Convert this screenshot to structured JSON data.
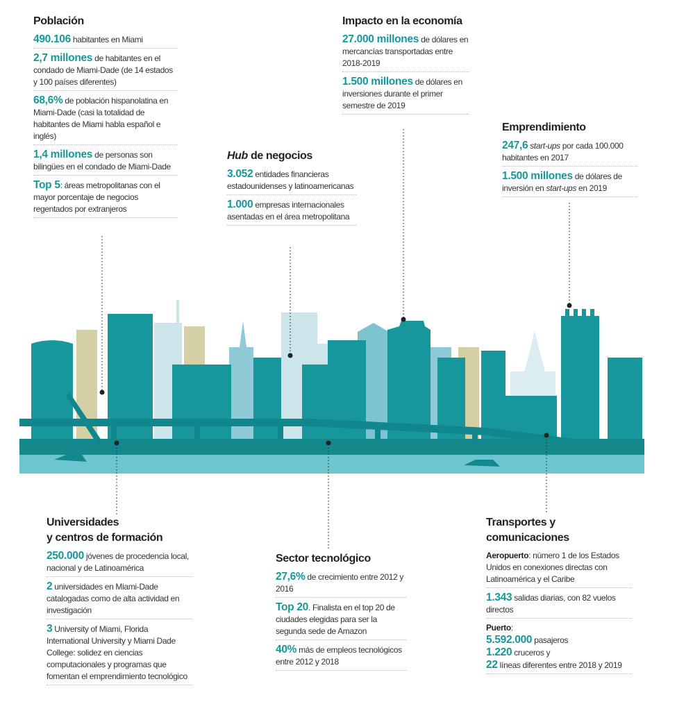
{
  "sections": [
    {
      "title": [
        [
          {
            "t": "Población"
          }
        ]
      ],
      "items": [
        [
          [
            {
              "t": "490.106",
              "s": "num"
            },
            {
              "t": " habitantes en Miami"
            }
          ]
        ],
        [
          [
            {
              "t": "2,7 millones",
              "s": "num"
            },
            {
              "t": " de habitantes en el condado de Miami-Dade (de 14 estados y 100 países diferentes)"
            }
          ]
        ],
        [
          [
            {
              "t": "68,6%",
              "s": "num"
            },
            {
              "t": " de población hispanolatina en Miami-Dade (casi la totalidad de habitantes de Miami habla español e inglés)"
            }
          ]
        ],
        [
          [
            {
              "t": "1,4 millones",
              "s": "num"
            },
            {
              "t": " de personas son bilingües en el condado de Miami-Dade"
            }
          ]
        ],
        [
          [
            {
              "t": "Top 5",
              "s": "num"
            },
            {
              "t": ": áreas metropolitanas con el mayor porcentaje de negocios regentados por extranjeros"
            }
          ]
        ]
      ]
    },
    {
      "title": [
        [
          {
            "t": "Hub",
            "s": "it"
          },
          {
            "t": " de negocios"
          }
        ]
      ],
      "items": [
        [
          [
            {
              "t": "3.052",
              "s": "num"
            },
            {
              "t": " entidades financieras estadounidenses y latinoamericanas"
            }
          ]
        ],
        [
          [
            {
              "t": "1.000",
              "s": "num"
            },
            {
              "t": " empresas internacionales asentadas en el área metropolitana"
            }
          ]
        ]
      ]
    },
    {
      "title": [
        [
          {
            "t": "Impacto en la economía"
          }
        ]
      ],
      "items": [
        [
          [
            {
              "t": "27.000 millones",
              "s": "num"
            },
            {
              "t": " de dólares en mercancías transportadas entre 2018-2019"
            }
          ]
        ],
        [
          [
            {
              "t": "1.500 millones",
              "s": "num"
            },
            {
              "t": " de dólares en inversiones durante el primer semestre de 2019"
            }
          ]
        ]
      ]
    },
    {
      "title": [
        [
          {
            "t": "Emprendimiento"
          }
        ]
      ],
      "items": [
        [
          [
            {
              "t": "247,6",
              "s": "num"
            },
            {
              "t": " "
            },
            {
              "t": "start-ups",
              "s": "it"
            },
            {
              "t": " por cada 100.000 habitantes en 2017"
            }
          ]
        ],
        [
          [
            {
              "t": "1.500 millones",
              "s": "num"
            },
            {
              "t": " de dólares de inversión en "
            },
            {
              "t": "start-ups",
              "s": "it"
            },
            {
              "t": " en 2019"
            }
          ]
        ]
      ]
    },
    {
      "title": [
        [
          {
            "t": "Universidades"
          }
        ],
        [
          {
            "t": "y centros de formación"
          }
        ]
      ],
      "items": [
        [
          [
            {
              "t": "250.000",
              "s": "num"
            },
            {
              "t": " jóvenes de procedencia local, nacional y de Latinoamérica"
            }
          ]
        ],
        [
          [
            {
              "t": "2",
              "s": "num"
            },
            {
              "t": " universidades en Miami-Dade catalogadas como de alta actividad en investigación"
            }
          ]
        ],
        [
          [
            {
              "t": "3",
              "s": "num"
            },
            {
              "t": " University of Miami, Florida International University y Miami Dade College: solidez en ciencias computacionales y programas que fomentan el emprendimiento tecnológico"
            }
          ]
        ]
      ]
    },
    {
      "title": [
        [
          {
            "t": "Sector tecnológico"
          }
        ]
      ],
      "items": [
        [
          [
            {
              "t": "27,6%",
              "s": "num"
            },
            {
              "t": " de crecimiento entre 2012 y 2016"
            }
          ]
        ],
        [
          [
            {
              "t": "Top 20",
              "s": "num"
            },
            {
              "t": ". Finalista en el top 20 de ciudades elegidas para ser la segunda sede de Amazon"
            }
          ]
        ],
        [
          [
            {
              "t": "40%",
              "s": "num"
            },
            {
              "t": " más de empleos tecnológicos entre 2012 y 2018"
            }
          ]
        ]
      ]
    },
    {
      "title": [
        [
          {
            "t": "Transportes y comunicaciones"
          }
        ]
      ],
      "items": [
        [
          [
            {
              "t": "Aeropuerto",
              "s": "b"
            },
            {
              "t": ": número 1 de los Estados Unidos en conexiones directas con Latinoamérica y el Caribe"
            }
          ]
        ],
        [
          [
            {
              "t": "1.343",
              "s": "num"
            },
            {
              "t": " salidas diarias, con 82 vuelos directos"
            }
          ]
        ],
        [
          [
            {
              "t": "Puerto",
              "s": "b"
            },
            {
              "t": ":"
            }
          ],
          [
            {
              "t": "5.592.000",
              "s": "num"
            },
            {
              "t": " pasajeros"
            }
          ],
          [
            {
              "t": "1.220",
              "s": "num"
            },
            {
              "t": " cruceros y"
            }
          ],
          [
            {
              "t": "22",
              "s": "num"
            },
            {
              "t": " líneas diferentes entre 2018 y 2019"
            }
          ]
        ]
      ]
    }
  ]
}
